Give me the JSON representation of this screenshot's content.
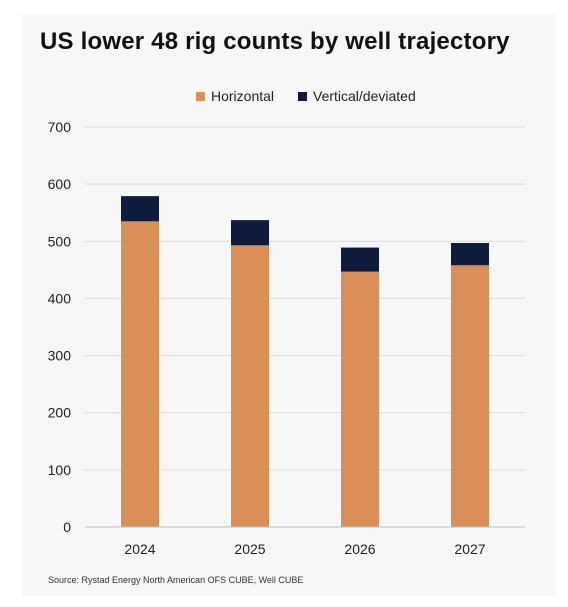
{
  "colors": {
    "horizontal": "#d98f55",
    "vertical": "#0f1b3d",
    "grid": "#dcdcdc",
    "axis_text": "#222222",
    "card_bg": "#f7f7f8"
  },
  "chart_data": {
    "type": "bar",
    "stacked": true,
    "title": "US lower 48 rig counts by well trajectory",
    "xlabel": "",
    "ylabel": "",
    "categories": [
      "2024",
      "2025",
      "2026",
      "2027"
    ],
    "series": [
      {
        "name": "Horizontal",
        "values": [
          535,
          493,
          447,
          458
        ]
      },
      {
        "name": "Vertical/deviated",
        "values": [
          44,
          44,
          42,
          39
        ]
      }
    ],
    "ylim": [
      0,
      700
    ],
    "yticks": [
      "0",
      "100",
      "200",
      "300",
      "400",
      "500",
      "600",
      "700"
    ],
    "grid": true,
    "legend_position": "top-center"
  },
  "legend": {
    "horizontal_label": "Horizontal",
    "vertical_label": "Vertical/deviated"
  },
  "footer": {
    "source": "Source:  Rystad Energy North American OFS CUBE, Well CUBE"
  }
}
